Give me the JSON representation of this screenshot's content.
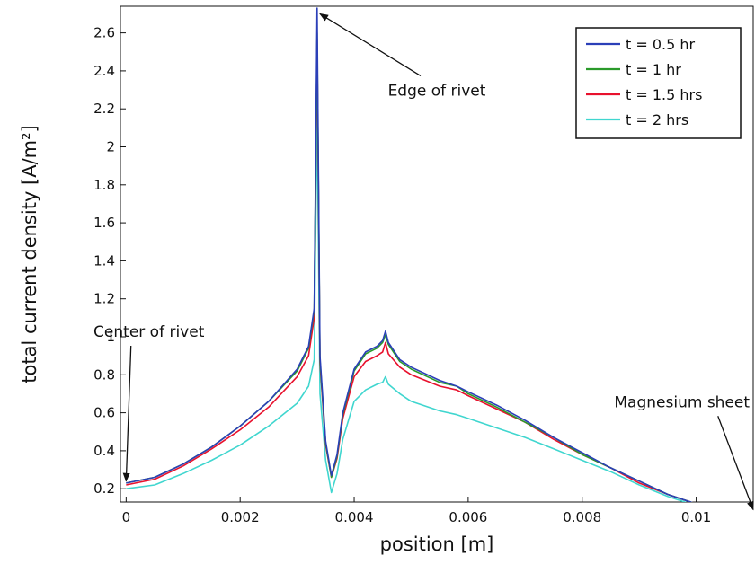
{
  "chart_data": {
    "type": "line",
    "title": "",
    "xlabel": "position [m]",
    "ylabel": "total current density [A/m²]",
    "xlim": [
      -0.0001,
      0.011
    ],
    "ylim": [
      0.13,
      2.74
    ],
    "xticks": [
      0,
      0.002,
      0.004,
      0.006,
      0.008,
      0.01
    ],
    "xtick_labels": [
      "0",
      "0.002",
      "0.004",
      "0.006",
      "0.008",
      "0.01"
    ],
    "yticks": [
      0.2,
      0.4,
      0.6,
      0.8,
      1,
      1.2,
      1.4,
      1.6,
      1.8,
      2,
      2.2,
      2.4,
      2.6
    ],
    "ytick_labels": [
      "0.2",
      "0.4",
      "0.6",
      "0.8",
      "1",
      "1.2",
      "1.4",
      "1.6",
      "1.8",
      "2",
      "2.2",
      "2.4",
      "2.6"
    ],
    "grid": false,
    "legend_position": "top-right",
    "x": [
      0,
      0.0005,
      0.001,
      0.0015,
      0.002,
      0.0025,
      0.003,
      0.0032,
      0.0033,
      0.00335,
      0.0034,
      0.0035,
      0.0036,
      0.0037,
      0.0038,
      0.004,
      0.0042,
      0.0044,
      0.0045,
      0.00455,
      0.0046,
      0.0048,
      0.005,
      0.0055,
      0.0058,
      0.006,
      0.0065,
      0.007,
      0.0075,
      0.008,
      0.0085,
      0.009,
      0.0095,
      0.01,
      0.0105,
      0.011
    ],
    "series": [
      {
        "name": "t = 0.5 hr",
        "color": "#2b3fb8",
        "values": [
          0.23,
          0.26,
          0.33,
          0.42,
          0.53,
          0.66,
          0.83,
          0.95,
          1.15,
          2.73,
          0.9,
          0.45,
          0.27,
          0.38,
          0.6,
          0.83,
          0.92,
          0.95,
          0.98,
          1.03,
          0.97,
          0.88,
          0.84,
          0.77,
          0.74,
          0.71,
          0.64,
          0.56,
          0.47,
          0.39,
          0.31,
          0.24,
          0.17,
          0.12,
          0.09,
          0.08
        ]
      },
      {
        "name": "t = 1 hr",
        "color": "#2a9a2a",
        "values": [
          0.23,
          0.26,
          0.33,
          0.42,
          0.53,
          0.66,
          0.82,
          0.94,
          1.14,
          2.6,
          0.88,
          0.44,
          0.26,
          0.37,
          0.59,
          0.82,
          0.91,
          0.94,
          0.97,
          1.01,
          0.96,
          0.87,
          0.83,
          0.76,
          0.74,
          0.7,
          0.63,
          0.55,
          0.47,
          0.38,
          0.31,
          0.24,
          0.17,
          0.12,
          0.09,
          0.08
        ]
      },
      {
        "name": "t = 1.5 hrs",
        "color": "#e8112d",
        "values": [
          0.22,
          0.25,
          0.32,
          0.41,
          0.51,
          0.63,
          0.79,
          0.9,
          1.1,
          2.57,
          0.86,
          0.43,
          0.26,
          0.36,
          0.57,
          0.79,
          0.87,
          0.9,
          0.92,
          0.97,
          0.91,
          0.84,
          0.8,
          0.74,
          0.72,
          0.69,
          0.62,
          0.55,
          0.46,
          0.38,
          0.31,
          0.23,
          0.17,
          0.12,
          0.09,
          0.08
        ]
      },
      {
        "name": "t = 2 hrs",
        "color": "#40d6cf",
        "values": [
          0.2,
          0.22,
          0.28,
          0.35,
          0.43,
          0.53,
          0.65,
          0.74,
          0.88,
          2.2,
          0.7,
          0.35,
          0.18,
          0.28,
          0.46,
          0.66,
          0.72,
          0.75,
          0.76,
          0.79,
          0.75,
          0.7,
          0.66,
          0.61,
          0.59,
          0.57,
          0.52,
          0.47,
          0.41,
          0.35,
          0.29,
          0.22,
          0.16,
          0.11,
          0.09,
          0.08
        ]
      }
    ],
    "annotations": [
      {
        "text": "Edge of rivet",
        "text_x": 0.00545,
        "text_y": 2.27,
        "arrow_to_x": 0.0034,
        "arrow_to_y": 2.7
      },
      {
        "text": "Center of rivet",
        "text_x": 0.0004,
        "text_y": 1.0,
        "arrow_to_x": 0.0,
        "arrow_to_y": 0.24
      },
      {
        "text": "Magnesium sheet",
        "text_x": 0.00975,
        "text_y": 0.63,
        "arrow_to_x": 0.011,
        "arrow_to_y": 0.09
      }
    ]
  }
}
